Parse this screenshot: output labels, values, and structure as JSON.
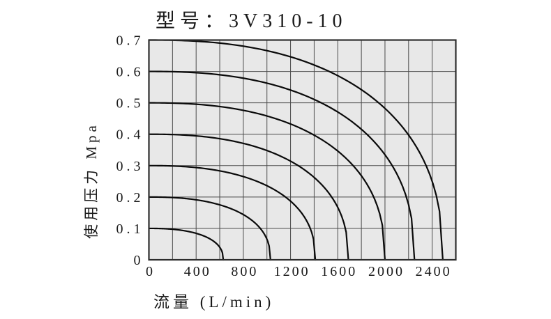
{
  "figure": {
    "background": "#ffffff"
  },
  "chart_data": {
    "type": "line",
    "title": "型号：3V310-10",
    "xlabel": "流量 (L/min)",
    "ylabel": "使用压力 Mpa",
    "xlim": [
      0,
      2600
    ],
    "ylim": [
      0,
      0.7
    ],
    "x_grid_step": 200,
    "y_grid_step": 0.1,
    "x_tick_values": [
      0,
      400,
      800,
      1200,
      1600,
      2000,
      2400
    ],
    "x_tick_labels": [
      "0",
      "400",
      "800",
      "1200",
      "1600",
      "2000",
      "2400"
    ],
    "y_tick_values": [
      0,
      0.1,
      0.2,
      0.3,
      0.4,
      0.5,
      0.6,
      0.7
    ],
    "y_tick_labels": [
      "0",
      "0.1",
      "0.2",
      "0.3",
      "0.4",
      "0.5",
      "0.6",
      "0.7"
    ],
    "grid": true,
    "legend_position": "none",
    "plot_background": "#e8e8e8",
    "grid_color": "#4a4a4a",
    "frame_color": "#2d2d2d",
    "curve_color": "#0a0a0a",
    "text_color": "#1a1a1a",
    "curve_model": "superellipse",
    "curve_exponent": 2.4,
    "series": [
      {
        "name": "inlet-pressure-0.1-mpa",
        "start_pressure_mpa": 0.1,
        "max_flow_lmin": 630,
        "points": [
          [
            0,
            0.1
          ],
          [
            300,
            0.093
          ],
          [
            500,
            0.072
          ],
          [
            630,
            0
          ]
        ]
      },
      {
        "name": "inlet-pressure-0.2-mpa",
        "start_pressure_mpa": 0.2,
        "max_flow_lmin": 1030,
        "points": [
          [
            0,
            0.2
          ],
          [
            400,
            0.19
          ],
          [
            700,
            0.165
          ],
          [
            950,
            0.1
          ],
          [
            1030,
            0
          ]
        ]
      },
      {
        "name": "inlet-pressure-0.3-mpa",
        "start_pressure_mpa": 0.3,
        "max_flow_lmin": 1410,
        "points": [
          [
            0,
            0.3
          ],
          [
            600,
            0.285
          ],
          [
            1100,
            0.2
          ],
          [
            1370,
            0.1
          ],
          [
            1410,
            0
          ]
        ]
      },
      {
        "name": "inlet-pressure-0.4-mpa",
        "start_pressure_mpa": 0.4,
        "max_flow_lmin": 1690,
        "points": [
          [
            0,
            0.4
          ],
          [
            600,
            0.39
          ],
          [
            1290,
            0.3
          ],
          [
            1560,
            0.2
          ],
          [
            1690,
            0
          ]
        ]
      },
      {
        "name": "inlet-pressure-0.5-mpa",
        "start_pressure_mpa": 0.5,
        "max_flow_lmin": 2000,
        "points": [
          [
            0,
            0.5
          ],
          [
            800,
            0.48
          ],
          [
            1420,
            0.4
          ],
          [
            1760,
            0.3
          ],
          [
            1920,
            0.2
          ],
          [
            2000,
            0
          ]
        ]
      },
      {
        "name": "inlet-pressure-0.6-mpa",
        "start_pressure_mpa": 0.6,
        "max_flow_lmin": 2250,
        "points": [
          [
            0,
            0.6
          ],
          [
            800,
            0.58
          ],
          [
            1450,
            0.5
          ],
          [
            1850,
            0.4
          ],
          [
            2080,
            0.3
          ],
          [
            2250,
            0
          ]
        ]
      },
      {
        "name": "inlet-pressure-0.7-mpa",
        "start_pressure_mpa": 0.7,
        "max_flow_lmin": 2490,
        "points": [
          [
            0,
            0.7
          ],
          [
            800,
            0.68
          ],
          [
            1600,
            0.6
          ],
          [
            2000,
            0.5
          ],
          [
            2210,
            0.4
          ],
          [
            2370,
            0.3
          ],
          [
            2490,
            0
          ]
        ]
      }
    ]
  }
}
